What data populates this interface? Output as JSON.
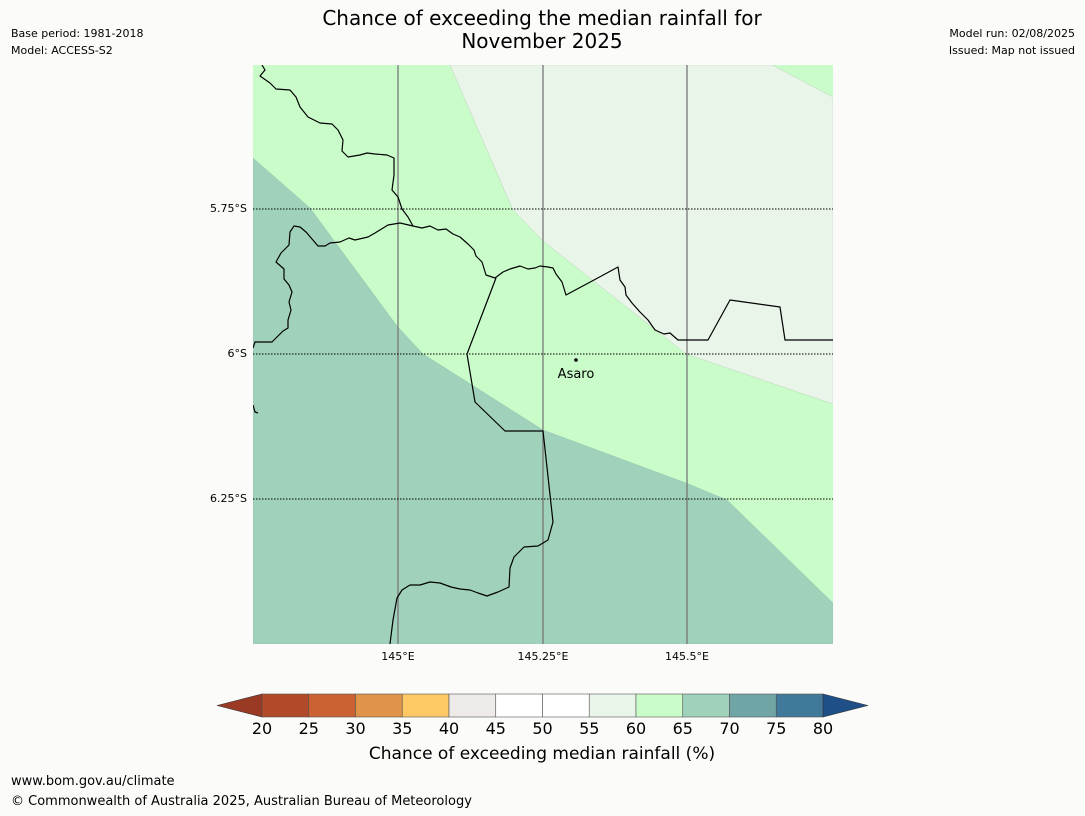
{
  "title_line1": "Chance of exceeding the median rainfall for",
  "title_line2": "November 2025",
  "meta_left": {
    "base_period": "Base period: 1981-2018",
    "model": "Model: ACCESS-S2"
  },
  "meta_right": {
    "model_run": "Model run: 02/08/2025",
    "issued": "Issued: Map not issued"
  },
  "map": {
    "lat_labels": [
      "5.75°S",
      "6°S",
      "6.25°S"
    ],
    "lon_labels": [
      "145°E",
      "145.25°E",
      "145.5°E"
    ],
    "place": {
      "name": "Asaro"
    },
    "colors": {
      "band_45_50": "#edecea",
      "band_55_60": "#eaf5ea",
      "band_60_65": "#c9fcc9",
      "band_65_70": "#9fd1bb"
    }
  },
  "colorbar": {
    "label": "Chance of exceeding median rainfall (%)",
    "ticks": [
      "20",
      "25",
      "30",
      "35",
      "40",
      "45",
      "50",
      "55",
      "60",
      "65",
      "70",
      "75",
      "80"
    ],
    "colors": [
      "#b24a2a",
      "#cc6233",
      "#e0944a",
      "#fec965",
      "#edeae8",
      "#ffffff",
      "#ffffff",
      "#eaf5ea",
      "#c9fcc9",
      "#9fd1bb",
      "#6fa5a5",
      "#40799a"
    ],
    "under_color": "#9b3a24",
    "over_color": "#1f4f87"
  },
  "footer": {
    "url": "www.bom.gov.au/climate",
    "copyright": "© Commonwealth of Australia 2025, Australian Bureau of Meteorology"
  }
}
